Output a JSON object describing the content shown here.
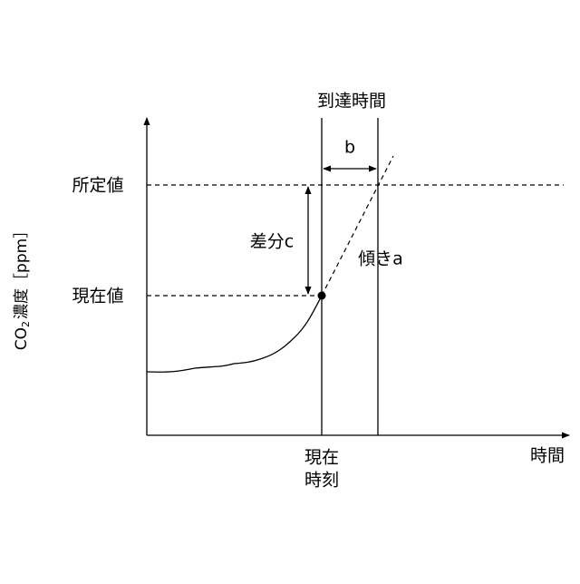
{
  "labels": {
    "arrival_time": "到達時間",
    "b": "b",
    "set_value": "所定値",
    "difference": "差分c",
    "slope": "傾きa",
    "current_value": "現在値",
    "current_time": [
      "現在",
      "時刻"
    ],
    "time_axis": "時間",
    "y_axis": [
      "CO",
      "2",
      "濃度［ppm］"
    ]
  }
}
